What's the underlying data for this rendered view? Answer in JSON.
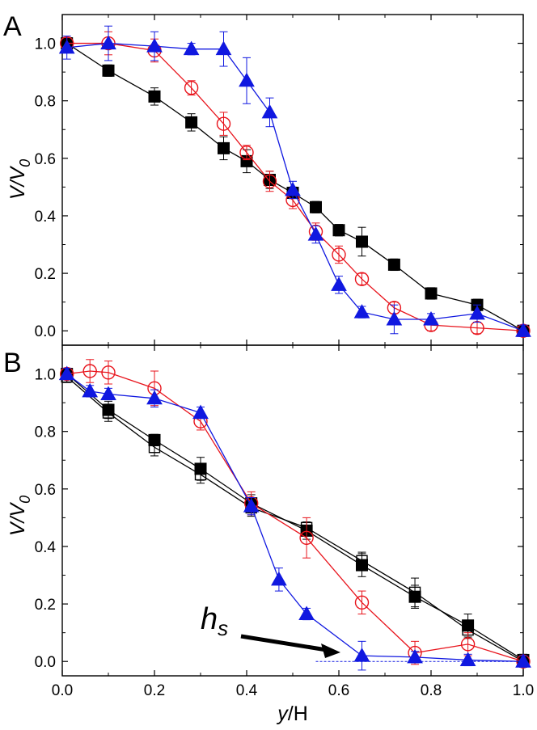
{
  "figure": {
    "colors": {
      "black": "#000000",
      "red": "#e8141c",
      "blue": "#1018e0"
    }
  },
  "chart_data": [
    {
      "type": "line",
      "panel": "A",
      "xlabel_main": "y",
      "xlabel_sub": "/H",
      "ylabel_main": "V",
      "ylabel_sep": "/",
      "ylabel_base": "V",
      "ylabel_sub": "0",
      "xlim": [
        0,
        1
      ],
      "ylim": [
        -0.05,
        1.1
      ],
      "xticks": [
        0.0,
        0.2,
        0.4,
        0.6,
        0.8,
        1.0
      ],
      "yticks": [
        0.0,
        0.2,
        0.4,
        0.6,
        0.8,
        1.0
      ],
      "ytick_labels": [
        "0.0",
        "0.2",
        "0.4",
        "0.6",
        "0.8",
        "1.0"
      ],
      "series": [
        {
          "name": "filled-square",
          "marker": "filled-square",
          "color": "#000000",
          "x": [
            0.01,
            0.1,
            0.2,
            0.28,
            0.35,
            0.4,
            0.45,
            0.5,
            0.55,
            0.6,
            0.65,
            0.72,
            0.8,
            0.9,
            1.0
          ],
          "y": [
            1.0,
            0.905,
            0.815,
            0.725,
            0.635,
            0.59,
            0.525,
            0.48,
            0.43,
            0.35,
            0.31,
            0.23,
            0.13,
            0.09,
            0.0
          ],
          "err": [
            0.02,
            0.02,
            0.03,
            0.03,
            0.04,
            0.04,
            0.03,
            0.02,
            0.02,
            0.02,
            0.05,
            0.02,
            0.02,
            0.02,
            0.02
          ]
        },
        {
          "name": "open-circle",
          "marker": "open-circle",
          "color": "#e8141c",
          "x": [
            0.01,
            0.1,
            0.2,
            0.28,
            0.35,
            0.4,
            0.45,
            0.5,
            0.55,
            0.6,
            0.65,
            0.72,
            0.8,
            0.9,
            1.0
          ],
          "y": [
            1.0,
            1.0,
            0.975,
            0.845,
            0.72,
            0.62,
            0.52,
            0.455,
            0.345,
            0.265,
            0.18,
            0.08,
            0.02,
            0.01,
            0.0
          ],
          "err": [
            0.02,
            0.04,
            0.04,
            0.025,
            0.04,
            0.025,
            0.035,
            0.03,
            0.03,
            0.03,
            0.02,
            0.02,
            0.02,
            0.02,
            0.02
          ]
        },
        {
          "name": "filled-triangle",
          "marker": "filled-triangle",
          "color": "#1018e0",
          "x": [
            0.01,
            0.1,
            0.2,
            0.28,
            0.35,
            0.4,
            0.45,
            0.5,
            0.55,
            0.6,
            0.65,
            0.72,
            0.8,
            0.9,
            1.0
          ],
          "y": [
            0.985,
            1.0,
            0.99,
            0.98,
            0.98,
            0.87,
            0.76,
            0.49,
            0.335,
            0.16,
            0.065,
            0.04,
            0.04,
            0.06,
            0.0
          ],
          "err": [
            0.04,
            0.06,
            0.05,
            0.02,
            0.06,
            0.08,
            0.05,
            0.03,
            0.03,
            0.03,
            0.02,
            0.05,
            0.02,
            0.03,
            0.02
          ]
        }
      ]
    },
    {
      "type": "line",
      "panel": "B",
      "xlabel_main": "y",
      "xlabel_sub": "/H",
      "ylabel_main": "V",
      "ylabel_sep": "/",
      "ylabel_base": "V",
      "ylabel_sub": "0",
      "xlim": [
        0,
        1
      ],
      "ylim": [
        -0.05,
        1.1
      ],
      "xticks": [
        0.0,
        0.2,
        0.4,
        0.6,
        0.8,
        1.0
      ],
      "xtick_labels": [
        "0.0",
        "0.2",
        "0.4",
        "0.6",
        "0.8",
        "1.0"
      ],
      "yticks": [
        0.0,
        0.2,
        0.4,
        0.6,
        0.8,
        1.0
      ],
      "ytick_labels": [
        "0.0",
        "0.2",
        "0.4",
        "0.6",
        "0.8",
        "1.0"
      ],
      "annotation": {
        "text_main": "h",
        "text_sub": "s",
        "hline_y": 0.0,
        "hline_x_from": 0.55,
        "hline_x_to": 1.0
      },
      "series": [
        {
          "name": "filled-square",
          "marker": "filled-square",
          "color": "#000000",
          "x": [
            0.01,
            0.1,
            0.2,
            0.3,
            0.41,
            0.53,
            0.65,
            0.765,
            0.88,
            1.0
          ],
          "y": [
            1.0,
            0.875,
            0.77,
            0.67,
            0.55,
            0.455,
            0.335,
            0.225,
            0.125,
            0.005
          ],
          "err": [
            0.02,
            0.03,
            0.02,
            0.04,
            0.03,
            0.03,
            0.04,
            0.04,
            0.04,
            0.02
          ]
        },
        {
          "name": "open-square",
          "marker": "open-square",
          "color": "#000000",
          "x": [
            0.01,
            0.1,
            0.2,
            0.3,
            0.41,
            0.53,
            0.65,
            0.765,
            0.88,
            1.0
          ],
          "y": [
            0.99,
            0.865,
            0.745,
            0.65,
            0.535,
            0.465,
            0.35,
            0.24,
            0.11,
            0.0
          ],
          "err": [
            0.02,
            0.03,
            0.03,
            0.03,
            0.03,
            0.02,
            0.03,
            0.05,
            0.03,
            0.02
          ]
        },
        {
          "name": "open-circle",
          "marker": "open-circle",
          "color": "#e8141c",
          "x": [
            0.01,
            0.06,
            0.1,
            0.2,
            0.3,
            0.41,
            0.53,
            0.65,
            0.765,
            0.88,
            1.0
          ],
          "y": [
            1.0,
            1.01,
            1.005,
            0.95,
            0.835,
            0.55,
            0.43,
            0.205,
            0.03,
            0.06,
            0.0
          ],
          "err": [
            0.02,
            0.04,
            0.04,
            0.06,
            0.03,
            0.04,
            0.07,
            0.04,
            0.04,
            0.04,
            0.02
          ]
        },
        {
          "name": "filled-triangle",
          "marker": "filled-triangle",
          "color": "#1018e0",
          "x": [
            0.01,
            0.06,
            0.1,
            0.2,
            0.3,
            0.41,
            0.47,
            0.53,
            0.65,
            0.765,
            0.88,
            1.0
          ],
          "y": [
            1.0,
            0.94,
            0.93,
            0.915,
            0.865,
            0.54,
            0.285,
            0.165,
            0.02,
            0.015,
            0.005,
            0.0
          ],
          "err": [
            0.02,
            0.02,
            0.02,
            0.03,
            0.02,
            0.03,
            0.04,
            0.02,
            0.05,
            0.02,
            0.02,
            0.02
          ]
        }
      ]
    }
  ],
  "panel_labels": {
    "a": "A",
    "b": "B"
  }
}
